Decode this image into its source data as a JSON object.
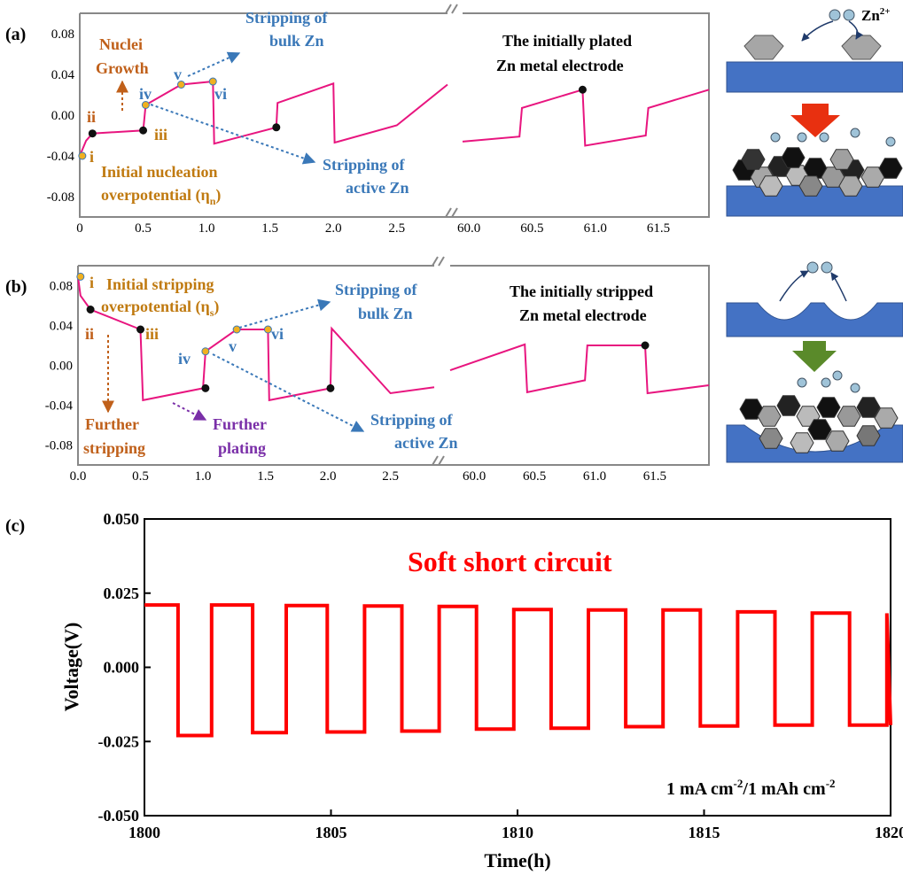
{
  "panels": {
    "a": {
      "label": "(a)",
      "title_line1": "The initially plated",
      "title_line2": "Zn metal electrode",
      "yticks": [
        "0.08",
        "0.04",
        "0.00",
        "-0.04",
        "-0.08"
      ],
      "xticks_left": [
        "0",
        "0.5",
        "1.0",
        "1.5",
        "2.0",
        "2.5"
      ],
      "xticks_right": [
        "60.0",
        "60.5",
        "61.0",
        "61.5"
      ],
      "ann_nuclei1": "Nuclei",
      "ann_nuclei2": "Growth",
      "ann_init1": "Initial nucleation",
      "ann_init2": "overpotential (η",
      "ann_init_sub": "n",
      "ann_init_close": ")",
      "ann_bulk1": "Stripping of",
      "ann_bulk2": "bulk Zn",
      "ann_active1": "Stripping of",
      "ann_active2": "active Zn",
      "pts": {
        "i": "i",
        "ii": "ii",
        "iii": "iii",
        "iv": "iv",
        "v": "v",
        "vi": "vi"
      },
      "ion_label": "Zn",
      "ion_sup": "2+"
    },
    "b": {
      "label": "(b)",
      "title_line1": "The initially stripped",
      "title_line2": "Zn metal electrode",
      "yticks": [
        "0.08",
        "0.04",
        "0.00",
        "-0.04",
        "-0.08"
      ],
      "xticks_left": [
        "0.0",
        "0.5",
        "1.0",
        "1.5",
        "2.0",
        "2.5"
      ],
      "xticks_right": [
        "60.0",
        "60.5",
        "61.0",
        "61.5"
      ],
      "ann_init1": "Initial stripping",
      "ann_init2": "overpotential (η",
      "ann_init_sub": "s",
      "ann_init_close": ")",
      "ann_bulk1": "Stripping of",
      "ann_bulk2": "bulk Zn",
      "ann_active1": "Stripping of",
      "ann_active2": "active Zn",
      "ann_further_strip1": "Further",
      "ann_further_strip2": "stripping",
      "ann_further_plate1": "Further",
      "ann_further_plate2": "plating",
      "pts": {
        "i": "i",
        "ii": "ii",
        "iii": "iii",
        "iv": "iv",
        "v": "v",
        "vi": "vi"
      }
    },
    "c": {
      "label": "(c)",
      "title": "Soft short circuit",
      "condition": "1 mA cm",
      "condition_sup1": "-2",
      "condition_mid": "/1 mAh cm",
      "condition_sup2": "-2",
      "xlabel": "Time(h)",
      "ylabel": "Voltage(V)",
      "yticks": [
        "0.050",
        "0.025",
        "0.000",
        "-0.025",
        "-0.050"
      ],
      "xticks": [
        "1800",
        "1805",
        "1810",
        "1815",
        "1820"
      ]
    }
  },
  "colors": {
    "trace": "#e8157f",
    "soft_short": "#ff0000",
    "nucleation_label": "#c07a10",
    "growth_label": "#c0601a",
    "blue_label": "#3a78b8",
    "purple_label": "#7a2fa8",
    "electrode": "#4472c4",
    "red_arrow": "#e83010",
    "green_arrow": "#5a8a2a"
  },
  "chart_data": [
    {
      "type": "line",
      "panel": "a",
      "xlabel": "",
      "ylabel": "",
      "ylim": [
        -0.1,
        0.1
      ],
      "xlim_segments": [
        [
          0,
          2.9
        ],
        [
          59.95,
          61.9
        ]
      ],
      "series": [
        {
          "x": [
            0,
            0.05,
            0.1,
            0.5,
            0.52,
            0.8,
            1.05,
            1.06,
            1.55,
            1.56,
            2.0,
            2.01,
            2.5,
            2.9,
            59.95,
            60.4,
            60.42,
            60.9,
            60.92,
            61.4,
            61.42,
            61.9
          ],
          "y": [
            -0.04,
            -0.025,
            -0.018,
            -0.015,
            0.01,
            0.03,
            0.033,
            -0.028,
            -0.012,
            0.012,
            0.031,
            -0.027,
            -0.01,
            0.03,
            -0.026,
            -0.021,
            0.007,
            0.025,
            -0.03,
            -0.02,
            0.007,
            0.025
          ]
        }
      ]
    },
    {
      "type": "line",
      "panel": "b",
      "xlabel": "",
      "ylabel": "",
      "ylim": [
        -0.1,
        0.1
      ],
      "xlim_segments": [
        [
          0,
          2.85
        ],
        [
          59.8,
          61.95
        ]
      ],
      "series": [
        {
          "x": [
            0,
            0.02,
            0.1,
            0.5,
            0.52,
            1.0,
            1.02,
            1.27,
            1.52,
            1.53,
            2.02,
            2.03,
            2.5,
            2.85,
            59.8,
            60.42,
            60.44,
            60.92,
            60.94,
            61.42,
            61.44,
            61.95
          ],
          "y": [
            0.089,
            0.07,
            0.056,
            0.036,
            -0.035,
            -0.023,
            0.014,
            0.036,
            0.036,
            -0.035,
            -0.023,
            0.037,
            -0.028,
            -0.022,
            -0.005,
            0.021,
            -0.027,
            -0.015,
            0.02,
            0.02,
            -0.028,
            -0.02
          ]
        }
      ]
    },
    {
      "type": "line",
      "panel": "c",
      "title": "Soft short circuit",
      "xlabel": "Time(h)",
      "ylabel": "Voltage(V)",
      "xlim": [
        1800,
        1820
      ],
      "ylim": [
        -0.05,
        0.05
      ],
      "series": [
        {
          "cycles_x": [
            1800.9,
            1801.8,
            1802.9,
            1803.8,
            1804.9,
            1805.9,
            1806.9,
            1807.9,
            1808.9,
            1809.9,
            1810.9,
            1811.9,
            1812.9,
            1813.9,
            1814.9,
            1815.9,
            1816.9,
            1817.9,
            1818.9,
            1819.9
          ],
          "plateau_high": [
            0.021,
            0.021,
            0.0208,
            0.0207,
            0.0205,
            0.0195,
            0.0193,
            0.0193,
            0.0187,
            0.0183,
            0.0182
          ],
          "plateau_low": [
            -0.023,
            -0.022,
            -0.0218,
            -0.0215,
            -0.0208,
            -0.0205,
            -0.02,
            -0.0198,
            -0.0195,
            -0.0195
          ]
        }
      ]
    }
  ]
}
